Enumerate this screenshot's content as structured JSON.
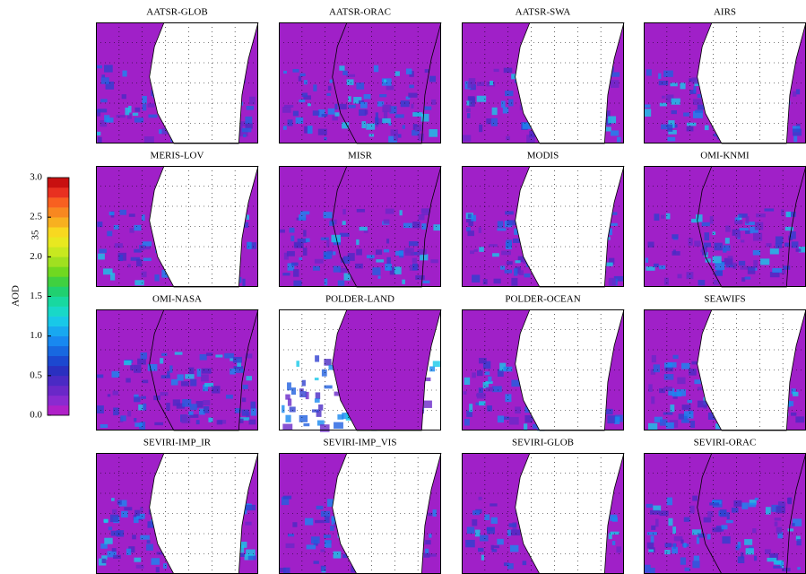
{
  "colorbar": {
    "label": "AOD",
    "extra_label": "35",
    "ticks": [
      {
        "value": 0,
        "label": "0.0"
      },
      {
        "value": 0.5,
        "label": "0.5"
      },
      {
        "value": 1,
        "label": "1.0"
      },
      {
        "value": 1.5,
        "label": "1.5"
      },
      {
        "value": 2,
        "label": "2.0"
      },
      {
        "value": 2.5,
        "label": "2.5"
      },
      {
        "value": 3,
        "label": "3.0"
      }
    ]
  },
  "panels": [
    {
      "title": "AATSR-GLOB"
    },
    {
      "title": "AATSR-ORAC"
    },
    {
      "title": "AATSR-SWA"
    },
    {
      "title": "AIRS"
    },
    {
      "title": "MERIS-LOV"
    },
    {
      "title": "MISR"
    },
    {
      "title": "MODIS"
    },
    {
      "title": "OMI-KNMI"
    },
    {
      "title": "OMI-NASA"
    },
    {
      "title": "POLDER-LAND"
    },
    {
      "title": "POLDER-OCEAN"
    },
    {
      "title": "SEAWIFS"
    },
    {
      "title": "SEVIRI-IMP_IR"
    },
    {
      "title": "SEVIRI-IMP_VIS"
    },
    {
      "title": "SEVIRI-GLOB"
    },
    {
      "title": "SEVIRI-ORAC"
    }
  ]
}
